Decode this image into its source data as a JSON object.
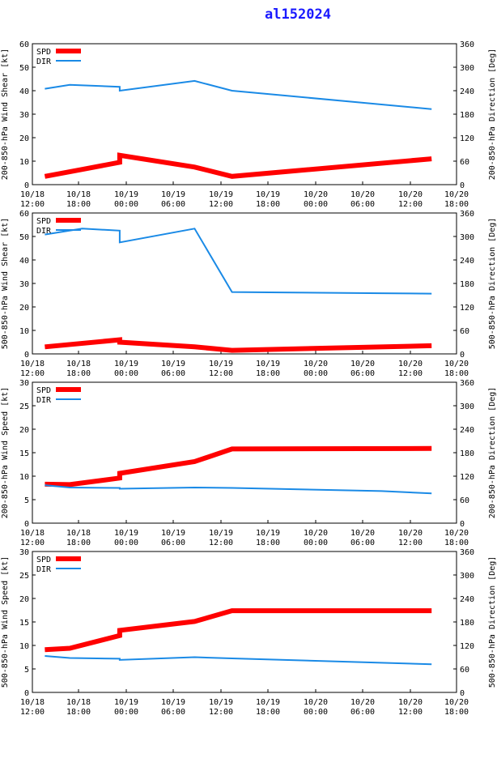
{
  "title": "al152024",
  "x_tick_labels": [
    "10/18\n12:00",
    "10/18\n18:00",
    "10/19\n00:00",
    "10/19\n06:00",
    "10/19\n12:00",
    "10/19\n18:00",
    "10/20\n00:00",
    "10/20\n06:00",
    "10/20\n12:00",
    "10/20\n18:00"
  ],
  "colors": {
    "spd": "#ff0000",
    "dir": "#1a8ae6"
  },
  "chart_data": [
    {
      "type": "line",
      "ylabel": "200-850-hPa Wind Shear [kt]",
      "y2label": "200-850-hPa Direction [Deg]",
      "ylim": [
        0,
        60
      ],
      "yticks": [
        0,
        10,
        20,
        30,
        40,
        50,
        60
      ],
      "y2lim": [
        0,
        360
      ],
      "y2ticks": [
        0,
        60,
        120,
        180,
        240,
        300,
        360
      ],
      "legend": [
        "SPD",
        "DIR"
      ],
      "series": [
        {
          "name": "SPD",
          "axis": "left",
          "x": [
            3,
            12,
            21,
            21,
            39,
            48,
            96
          ],
          "values": [
            3.5,
            6.5,
            9.5,
            12.5,
            7.5,
            3.5,
            11
          ]
        },
        {
          "name": "DIR",
          "axis": "right",
          "x": [
            3,
            9,
            21,
            21,
            39,
            48,
            96
          ],
          "values": [
            245,
            255,
            250,
            240,
            265,
            240,
            193
          ]
        }
      ]
    },
    {
      "type": "line",
      "ylabel": "500-850-hPa Wind Shear [kt]",
      "y2label": "500-850-hPa Direction [Deg]",
      "ylim": [
        0,
        60
      ],
      "yticks": [
        0,
        10,
        20,
        30,
        40,
        50,
        60
      ],
      "y2lim": [
        0,
        360
      ],
      "y2ticks": [
        0,
        60,
        120,
        180,
        240,
        300,
        360
      ],
      "legend": [
        "SPD",
        "DIR"
      ],
      "series": [
        {
          "name": "SPD",
          "axis": "left",
          "x": [
            3,
            21,
            21,
            39,
            48,
            96
          ],
          "values": [
            3,
            6,
            5,
            3,
            1.5,
            3.5
          ]
        },
        {
          "name": "DIR",
          "axis": "right",
          "x": [
            3,
            12,
            21,
            21,
            39,
            48,
            60,
            84,
            96
          ],
          "values": [
            305,
            320,
            315,
            285,
            320,
            158,
            157,
            155,
            154
          ]
        }
      ]
    },
    {
      "type": "line",
      "ylabel": "200-850-hPa Wind Speed [kt]",
      "y2label": "200-850-hPa Direction [Deg]",
      "ylim": [
        0,
        30
      ],
      "yticks": [
        0,
        5,
        10,
        15,
        20,
        25,
        30
      ],
      "y2lim": [
        0,
        360
      ],
      "y2ticks": [
        0,
        60,
        120,
        180,
        240,
        300,
        360
      ],
      "legend": [
        "SPD",
        "DIR"
      ],
      "series": [
        {
          "name": "SPD",
          "axis": "left",
          "x": [
            3,
            9,
            21,
            21,
            39,
            48,
            96
          ],
          "values": [
            8.3,
            8.2,
            9.6,
            10.6,
            13.1,
            15.8,
            15.9
          ]
        },
        {
          "name": "DIR",
          "axis": "right",
          "x": [
            3,
            9,
            21,
            21,
            39,
            48,
            84,
            96
          ],
          "values": [
            97,
            91,
            90,
            88,
            91,
            90,
            82,
            76
          ]
        }
      ]
    },
    {
      "type": "line",
      "ylabel": "500-850-hPa Wind Speed [kt]",
      "y2label": "500-850-hPa Direction [Deg]",
      "ylim": [
        0,
        30
      ],
      "yticks": [
        0,
        5,
        10,
        15,
        20,
        25,
        30
      ],
      "y2lim": [
        0,
        360
      ],
      "y2ticks": [
        0,
        60,
        120,
        180,
        240,
        300,
        360
      ],
      "legend": [
        "SPD",
        "DIR"
      ],
      "series": [
        {
          "name": "SPD",
          "axis": "left",
          "x": [
            3,
            9,
            21,
            21,
            39,
            48,
            96
          ],
          "values": [
            9.1,
            9.4,
            12.1,
            13.2,
            15.1,
            17.4,
            17.4
          ]
        },
        {
          "name": "DIR",
          "axis": "right",
          "x": [
            3,
            9,
            21,
            21,
            39,
            48,
            96
          ],
          "values": [
            93,
            88,
            86,
            83,
            90,
            87,
            72
          ]
        }
      ]
    }
  ]
}
